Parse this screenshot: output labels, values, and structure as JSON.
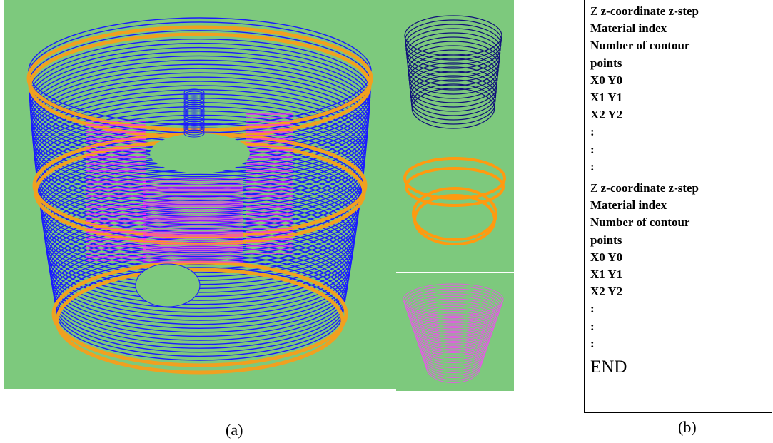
{
  "figure": {
    "panel_a": {
      "label": "(a)"
    },
    "panel_b": {
      "label": "(b)",
      "blocks": [
        {
          "header_prefix": "Z",
          "header": "z-coordinate z-step",
          "lines": [
            "Material index",
            "Number of contour",
            "points",
            "X0 Y0",
            "X1 Y1",
            "X2 Y2",
            ":",
            ":",
            ":"
          ]
        },
        {
          "header_prefix": "Z",
          "header": "z-coordinate z-step",
          "lines": [
            "Material index",
            "Number of contour",
            "points",
            "X0 Y0",
            "X1 Y1",
            "X2 Y2",
            ":",
            ":",
            ":"
          ]
        }
      ],
      "end": "END"
    }
  }
}
